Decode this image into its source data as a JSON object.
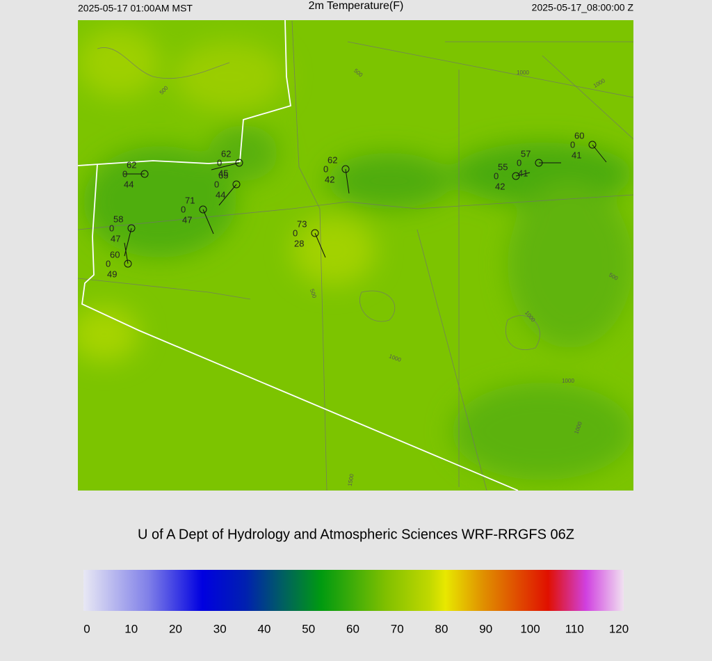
{
  "header": {
    "left": "2025-05-17 01:00AM MST",
    "title": "2m Temperature(F)",
    "right": "2025-05-17_08:00:00 Z"
  },
  "credit": "U of A Dept of Hydrology and Atmospheric Sciences WRF-RRGFS 06Z",
  "colorbar": {
    "ticks": [
      0,
      10,
      20,
      30,
      40,
      50,
      60,
      70,
      80,
      90,
      100,
      110,
      120
    ]
  },
  "stations": [
    {
      "temp": "62",
      "cloud": "0",
      "dew": "44"
    },
    {
      "temp": "62",
      "cloud": "0",
      "dew": "45"
    },
    {
      "temp": "65",
      "cloud": "0",
      "dew": "44"
    },
    {
      "temp": "71",
      "cloud": "0",
      "dew": "47"
    },
    {
      "temp": "58",
      "cloud": "0",
      "dew": "47"
    },
    {
      "temp": "60",
      "cloud": "0",
      "dew": "49"
    },
    {
      "temp": "73",
      "cloud": "0",
      "dew": "28"
    },
    {
      "temp": "62",
      "cloud": "0",
      "dew": "42"
    },
    {
      "temp": "55",
      "cloud": "0",
      "dew": "42"
    },
    {
      "temp": "57",
      "cloud": "0",
      "dew": "41"
    },
    {
      "temp": "60",
      "cloud": "0",
      "dew": "41"
    }
  ],
  "contour_labels": [
    "500",
    "500",
    "1000",
    "1000",
    "1000",
    "1000",
    "1000",
    "1500",
    "500",
    "500",
    "1000"
  ]
}
